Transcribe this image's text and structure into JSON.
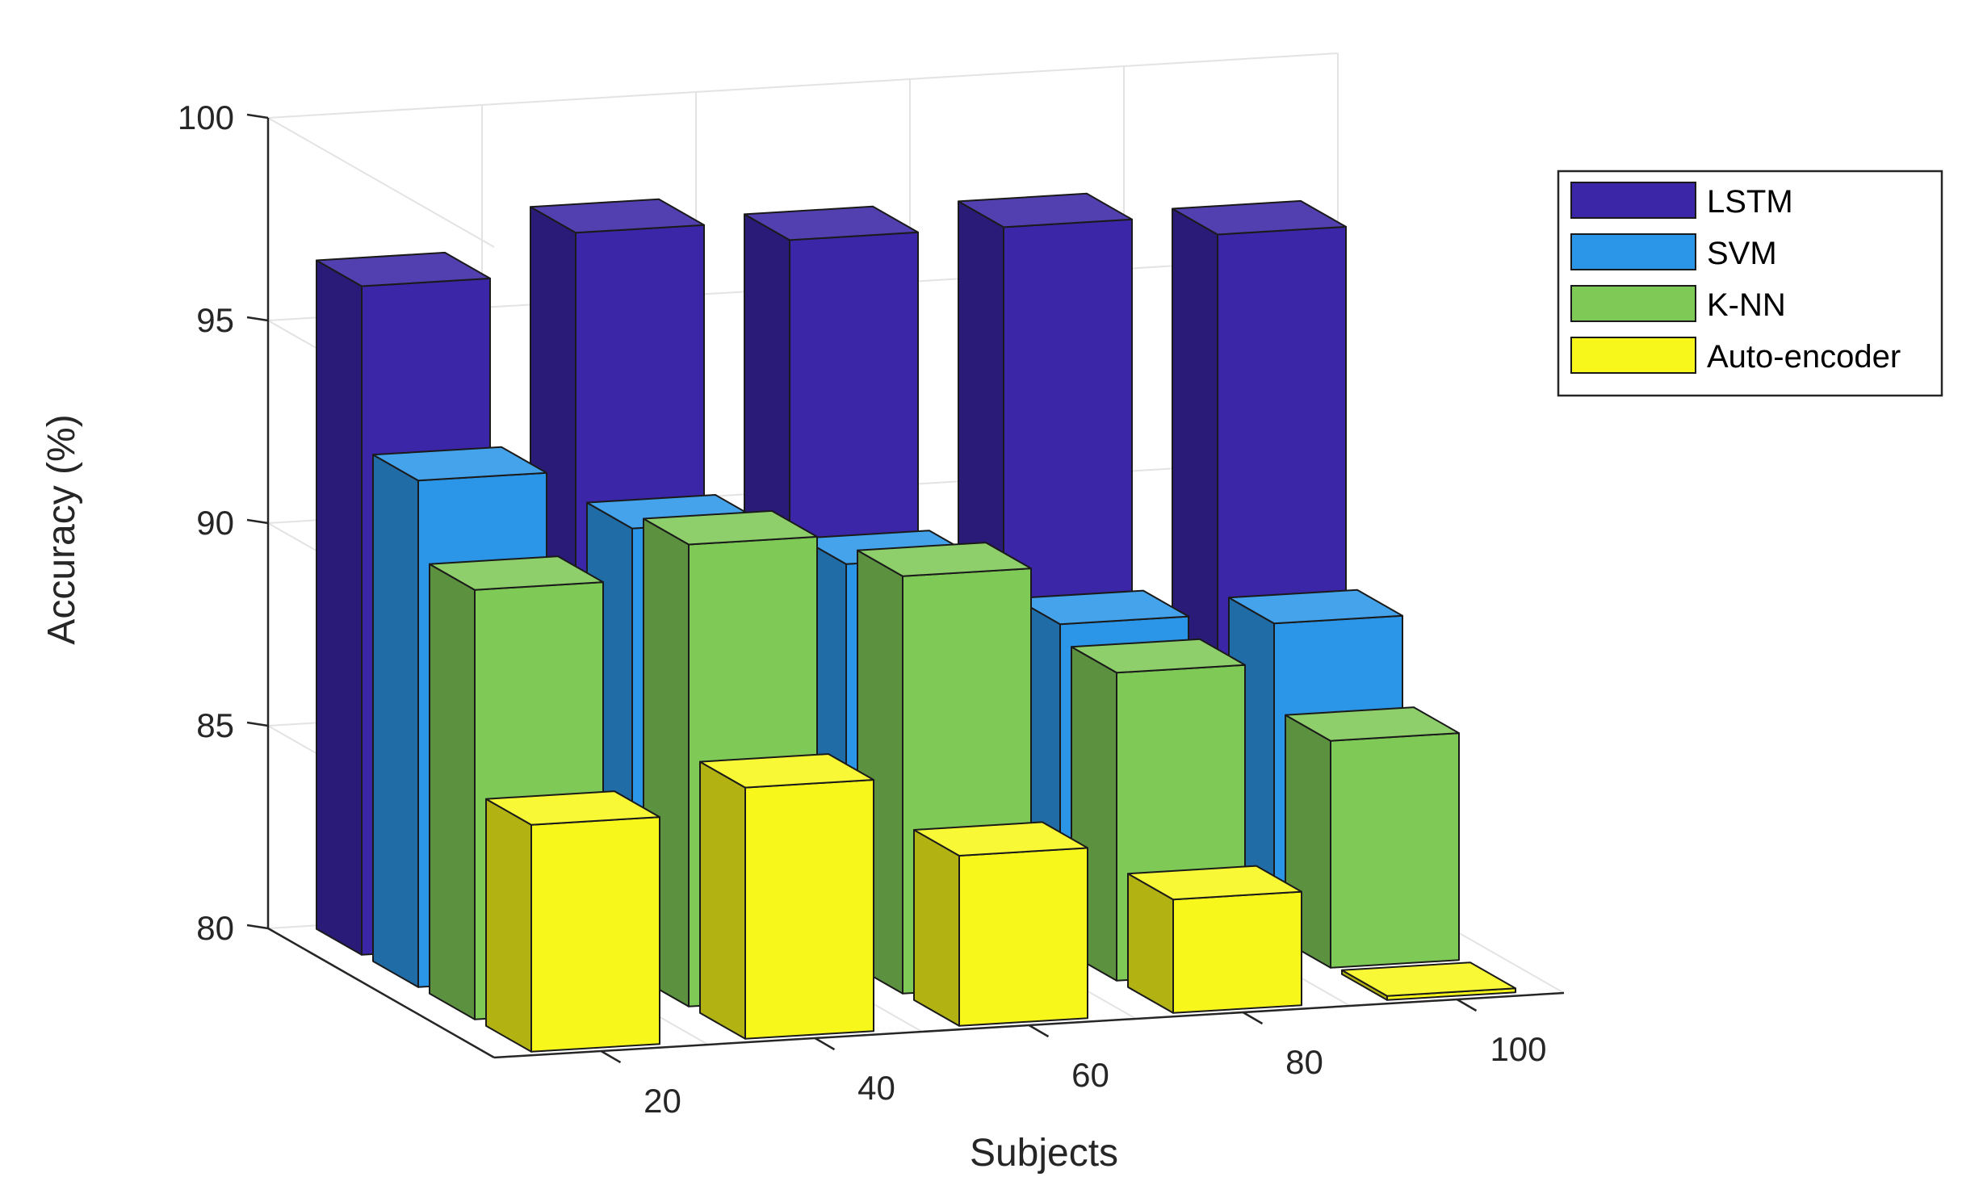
{
  "chart_data": {
    "type": "bar",
    "subtype": "3d-grouped",
    "title": "",
    "xlabel": "Subjects",
    "ylabel": "Accuracy (%)",
    "categories": [
      "20",
      "40",
      "60",
      "80",
      "100"
    ],
    "ylim": [
      80,
      100
    ],
    "yticks": [
      80,
      85,
      90,
      95,
      100
    ],
    "grid": true,
    "legend_position": "top-right",
    "series": [
      {
        "name": "LSTM",
        "color": "#3a26a6",
        "values": [
          96.5,
          97.5,
          97.0,
          97.0,
          96.5
        ]
      },
      {
        "name": "SVM",
        "color": "#2b96e8",
        "values": [
          92.5,
          91.0,
          89.8,
          88.0,
          87.7
        ]
      },
      {
        "name": "K-NN",
        "color": "#7fc957",
        "values": [
          90.6,
          91.4,
          90.3,
          87.6,
          85.6
        ]
      },
      {
        "name": "Auto-encoder",
        "color": "#f7f71b",
        "values": [
          85.6,
          86.2,
          84.2,
          82.8,
          80.1
        ]
      }
    ]
  }
}
